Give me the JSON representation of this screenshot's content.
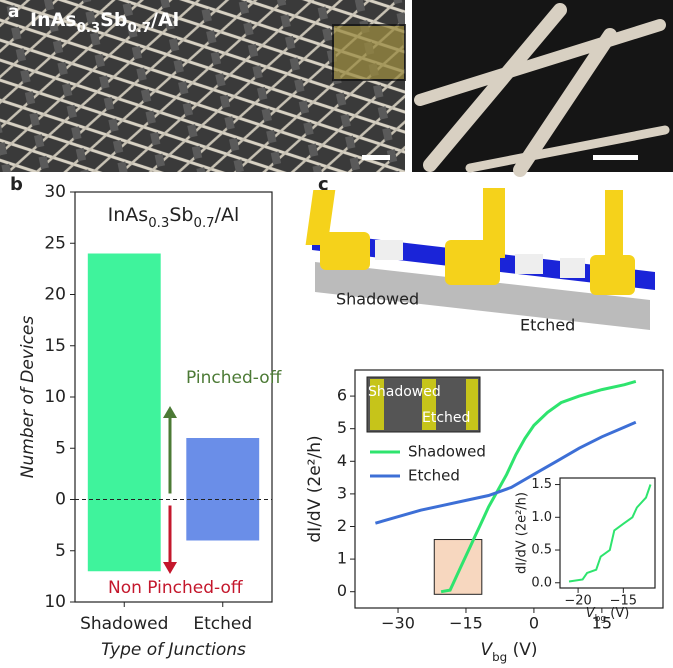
{
  "panel_labels": [
    "a",
    "b",
    "c"
  ],
  "image_title": [
    "InAs",
    "0.3",
    "Sb",
    "0.7",
    "/Al"
  ],
  "schematic_labels": [
    "Shadowed",
    "Etched"
  ],
  "photo_labels": [
    "Shadowed",
    "Etched"
  ],
  "chart_data": [
    {
      "type": "bar",
      "title": [
        "InAs",
        "0.3",
        "Sb",
        "0.7",
        "/Al"
      ],
      "categories": [
        "Shadowed",
        "Etched"
      ],
      "colors": [
        "#3ff39c",
        "#6a8ee8"
      ],
      "series": [
        {
          "name": "Pinched-off",
          "color": "#4c7a35",
          "values": [
            24,
            6
          ]
        },
        {
          "name": "Non Pinched-off",
          "color": "#c4172c",
          "values": [
            -7,
            -4
          ]
        }
      ],
      "xlabel": "Type of Junctions",
      "ylabel": "Number of Devices",
      "ylim": [
        -10,
        30
      ],
      "yticks": [
        30,
        25,
        20,
        15,
        10,
        5,
        0,
        {
          "value": -5,
          "label": "5"
        },
        {
          "value": -10,
          "label": "10"
        }
      ]
    },
    {
      "type": "line",
      "xlabel": [
        "V",
        "bg",
        " (V)"
      ],
      "ylabel": "dI/dV (2e²/h)",
      "xlim": [
        -39.5,
        28.5
      ],
      "ylim": [
        -0.5,
        6.8
      ],
      "xticks": [
        {
          "value": -30,
          "label": "−30"
        },
        {
          "value": -15,
          "label": "−15"
        },
        0,
        15
      ],
      "yticks": [
        0,
        1,
        2,
        3,
        4,
        5,
        6
      ],
      "legend": "upper left",
      "series": [
        {
          "name": "Shadowed",
          "color": "#2ee46e",
          "x": [
            -20.5,
            -18.5,
            -17,
            -16,
            -15,
            -14,
            -13,
            -12,
            -11,
            -10,
            -8,
            -6,
            -4,
            -2,
            0,
            3,
            6,
            10,
            15,
            20,
            22.5
          ],
          "values": [
            0,
            0.05,
            0.5,
            0.8,
            1.1,
            1.4,
            1.7,
            2.0,
            2.3,
            2.6,
            3.1,
            3.6,
            4.2,
            4.7,
            5.1,
            5.5,
            5.8,
            6.0,
            6.2,
            6.35,
            6.45
          ]
        },
        {
          "name": "Etched",
          "color": "#3d6fd6",
          "x": [
            -35,
            -30,
            -25,
            -20,
            -15,
            -10,
            -5,
            0,
            5,
            10,
            15,
            20,
            22.5
          ],
          "values": [
            2.1,
            2.3,
            2.5,
            2.65,
            2.8,
            2.95,
            3.2,
            3.6,
            4.0,
            4.4,
            4.75,
            5.05,
            5.2
          ]
        }
      ]
    },
    {
      "type": "line",
      "xlabel": [
        "V",
        "bg",
        " (V)"
      ],
      "ylabel": "dI/dV (2e²/h)",
      "xlim": [
        -22,
        -11.5
      ],
      "ylim": [
        -0.08,
        1.6
      ],
      "xticks": [
        {
          "value": -20,
          "label": "−20"
        },
        {
          "value": -15,
          "label": "−15"
        }
      ],
      "yticks": [
        {
          "value": 0,
          "label": "0.0"
        },
        0.5,
        {
          "value": 1,
          "label": "1.0"
        },
        1.5
      ],
      "series": [
        {
          "color": "#2ee46e",
          "x": [
            -21,
            -19.5,
            -19,
            -18,
            -17.5,
            -16.5,
            -16,
            -15,
            -14,
            -13.5,
            -12.5,
            -12
          ],
          "values": [
            0.02,
            0.05,
            0.15,
            0.2,
            0.4,
            0.5,
            0.8,
            0.9,
            1.0,
            1.15,
            1.3,
            1.5
          ]
        }
      ]
    }
  ]
}
